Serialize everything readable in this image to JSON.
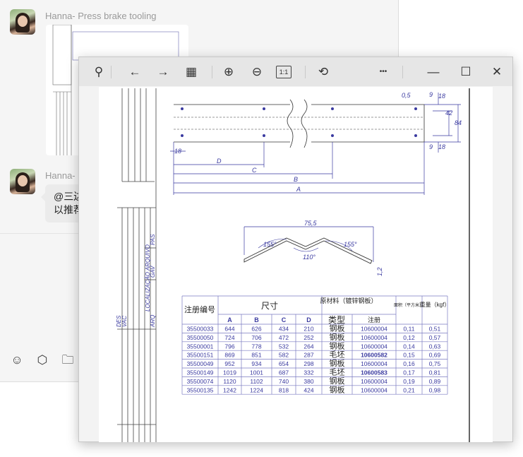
{
  "chat": {
    "messages": [
      {
        "sender": "Hanna- Press brake tooling",
        "type": "image"
      },
      {
        "sender": "Hanna- ",
        "text_line1": "@三边",
        "text_line2": "以推荐"
      }
    ],
    "input_toolbar": [
      {
        "icon": "emoji-icon",
        "glyph": "☺"
      },
      {
        "icon": "cube-icon",
        "glyph": "⬡"
      },
      {
        "icon": "folder-icon",
        "glyph": "🗀"
      }
    ]
  },
  "viewer": {
    "toolbar": {
      "pin": "⚲",
      "back": "←",
      "forward": "→",
      "gallery": "▦",
      "zoom_in": "⊕",
      "zoom_out": "⊖",
      "actual_size": "1:1",
      "rotate": "⟲",
      "more": "•••",
      "minimize": "—",
      "maximize": "☐",
      "close": "✕"
    },
    "drawing": {
      "dims": {
        "hole": "0,5",
        "d9a": "9",
        "d18a": "18",
        "d42": "42",
        "d84": "84",
        "d9b": "9",
        "d18b": "18",
        "d18c": "18",
        "D": "D",
        "C": "C",
        "B": "B",
        "A": "A",
        "w755": "75,5",
        "a155a": "155°",
        "a155b": "155°",
        "a110": "110°",
        "t12": "1,2"
      },
      "title_block": {
        "loc": "LOCALIZAÇÃO ARQUIVO",
        "pas": "PAS",
        "gav": "GAV",
        "arq": "ARQ",
        "vac": "VAC",
        "des": "DES"
      },
      "table": {
        "headers": {
          "code": "注册编号",
          "size": "尺寸",
          "material": "原材料（镀锌钢板）",
          "area": "面积（平方米）",
          "weight": "重量（kgf）",
          "a": "A",
          "b": "B",
          "c": "C",
          "d": "D",
          "type": "类型",
          "reg": "注册"
        },
        "rows": [
          [
            "35500033",
            "644",
            "626",
            "434",
            "210",
            "钢板",
            "10600004",
            "0,11",
            "0,51"
          ],
          [
            "35500050",
            "724",
            "706",
            "472",
            "252",
            "钢板",
            "10600004",
            "0,12",
            "0,57"
          ],
          [
            "35500001",
            "796",
            "778",
            "532",
            "264",
            "钢板",
            "10600004",
            "0,14",
            "0,63"
          ],
          [
            "35500151",
            "869",
            "851",
            "582",
            "287",
            "毛坯",
            "10600582",
            "0,15",
            "0,69"
          ],
          [
            "35500049",
            "952",
            "934",
            "654",
            "298",
            "钢板",
            "10600004",
            "0,16",
            "0,75"
          ],
          [
            "35500149",
            "1019",
            "1001",
            "687",
            "332",
            "毛坯",
            "10600583",
            "0,17",
            "0,81"
          ],
          [
            "35500074",
            "1120",
            "1102",
            "740",
            "380",
            "钢板",
            "10600004",
            "0,19",
            "0,89"
          ],
          [
            "35500135",
            "1242",
            "1224",
            "818",
            "424",
            "钢板",
            "10600004",
            "0,21",
            "0,98"
          ]
        ]
      }
    }
  },
  "colors": {
    "drawing_blue": "#3a3aa0",
    "toolbar_bg": "#e6e6e6"
  }
}
